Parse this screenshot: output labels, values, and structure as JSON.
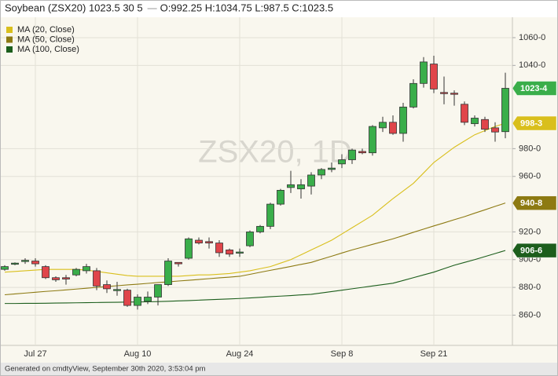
{
  "chart_data": {
    "type": "candlestick",
    "title": "Soybean (ZSX20) 1023.5 30 5",
    "ohlc_label": "O:992.25 H:1034.75 L:987.5 C:1023.5",
    "watermark": "ZSX20, 1D",
    "footer": "Generated on cmdtyView, September 30th 2020, 3:53:04 pm",
    "categories": [
      null,
      null,
      null,
      "Jul 27",
      null,
      null,
      null,
      null,
      null,
      null,
      null,
      null,
      null,
      "Aug 10",
      null,
      null,
      null,
      null,
      null,
      null,
      null,
      null,
      null,
      "Aug 24",
      null,
      null,
      null,
      null,
      null,
      null,
      null,
      null,
      null,
      "Sep 8",
      null,
      null,
      null,
      null,
      null,
      null,
      null,
      null,
      "Sep 21",
      null,
      null,
      null,
      null,
      null,
      null,
      null
    ],
    "candles": {
      "up_color": "#3aae4a",
      "down_color": "#e0454a",
      "last_label": "1023-4",
      "open": [
        893,
        897,
        899,
        899,
        895,
        887,
        887,
        889,
        892,
        892,
        882,
        878,
        878,
        867,
        870,
        873,
        882,
        898,
        901,
        914,
        913,
        912,
        907,
        905,
        910,
        920,
        924,
        940,
        952,
        951,
        953,
        961,
        965,
        969,
        972,
        978,
        977,
        995,
        999,
        991,
        1010,
        1027,
        1041,
        1020.5,
        1020,
        1012,
        998,
        1001,
        995,
        992.25
      ],
      "high": [
        896,
        898,
        901,
        901,
        896,
        888,
        889,
        894,
        897,
        894,
        885,
        884,
        879,
        875,
        877,
        882,
        901,
        898,
        916,
        916,
        916,
        914,
        908,
        908,
        921,
        925,
        941,
        951,
        964,
        958,
        963,
        966,
        970,
        976,
        980,
        980,
        997,
        1003,
        1004,
        1013,
        1030,
        1046,
        1047,
        1032,
        1022,
        1014,
        1004,
        1003,
        999,
        1034.75
      ],
      "low": [
        892,
        896,
        897,
        895,
        886,
        884,
        882,
        888,
        890,
        878,
        876,
        874,
        866,
        864,
        868,
        867,
        881,
        895,
        900,
        911,
        908,
        902,
        902,
        902,
        909,
        919,
        922,
        939,
        948,
        944,
        947,
        958,
        963,
        966,
        969,
        976,
        975,
        992,
        990,
        985,
        1009,
        1024,
        1020,
        1012,
        1011,
        997,
        996,
        992,
        985,
        987.5
      ],
      "close": [
        895,
        897.5,
        899.5,
        897,
        887,
        885.5,
        886,
        893,
        895,
        881,
        879,
        878.5,
        867,
        873,
        873,
        882,
        899,
        897,
        915,
        912,
        912,
        905,
        904,
        905.5,
        920,
        924,
        940,
        950,
        954,
        954,
        961,
        965,
        966,
        972,
        979,
        977,
        996,
        999,
        991,
        1010,
        1027,
        1042.5,
        1023,
        1020,
        1019.5,
        999,
        1002,
        994,
        992,
        1023.5
      ]
    },
    "series": [
      {
        "name": "MA (20, Close)",
        "color": "#d9bf1c",
        "last_label": "998-3",
        "values": [
          891,
          891.5,
          892,
          892.5,
          893,
          893,
          893,
          893,
          892.5,
          891.5,
          890.5,
          889.5,
          888.5,
          888,
          888,
          888,
          888,
          888,
          888.5,
          889,
          889,
          889.5,
          890,
          891,
          892,
          893.5,
          895,
          897.5,
          900,
          903.5,
          907,
          910.5,
          914,
          918.5,
          923,
          927.5,
          932,
          938,
          944,
          949.5,
          955,
          962.5,
          970,
          975.5,
          981,
          985.5,
          990,
          993,
          996,
          998.3
        ]
      },
      {
        "name": "MA (50, Close)",
        "color": "#8d7a12",
        "last_label": "940-8",
        "values": [
          874.7,
          875.3,
          875.9,
          876.5,
          877.1,
          877.6,
          878.2,
          878.8,
          879.4,
          880,
          880.6,
          881.2,
          881.8,
          882.3,
          882.9,
          883.5,
          884,
          884.6,
          885.1,
          885.7,
          886.3,
          886.9,
          887.4,
          888,
          889.4,
          890.9,
          892.3,
          893.7,
          895.1,
          896.6,
          898,
          900.3,
          902.5,
          904.8,
          907,
          909,
          911,
          913,
          915,
          917.3,
          919.7,
          922,
          924.3,
          926.5,
          928.8,
          931,
          933.5,
          935.9,
          938.4,
          940.8
        ]
      },
      {
        "name": "MA (100, Close)",
        "color": "#1c5e1c",
        "last_label": "906-6",
        "values": [
          868.4,
          868.4,
          868.5,
          868.5,
          868.6,
          868.7,
          868.8,
          868.9,
          869,
          869.1,
          869.2,
          869.3,
          869.4,
          869.5,
          869.6,
          869.8,
          870,
          870.3,
          870.5,
          870.8,
          871.1,
          871.4,
          871.7,
          872,
          872.4,
          872.8,
          873.3,
          873.7,
          874.1,
          874.6,
          875,
          876,
          877,
          878,
          879,
          880,
          881,
          882,
          883,
          885,
          887,
          889,
          891,
          893.5,
          896,
          898,
          900,
          902.2,
          904.4,
          906.6
        ]
      }
    ],
    "ylim": [
      838.2,
      1074.7
    ],
    "yticks": [
      {
        "value": 1060,
        "label": "1060-0"
      },
      {
        "value": 1040,
        "label": "1040-0"
      },
      {
        "value": 980,
        "label": "980-0"
      },
      {
        "value": 960,
        "label": "960-0"
      },
      {
        "value": 920,
        "label": "920-0"
      },
      {
        "value": 900,
        "label": "900-0"
      },
      {
        "value": 880,
        "label": "880-0"
      },
      {
        "value": 860,
        "label": "860-0"
      }
    ],
    "grid": true
  }
}
